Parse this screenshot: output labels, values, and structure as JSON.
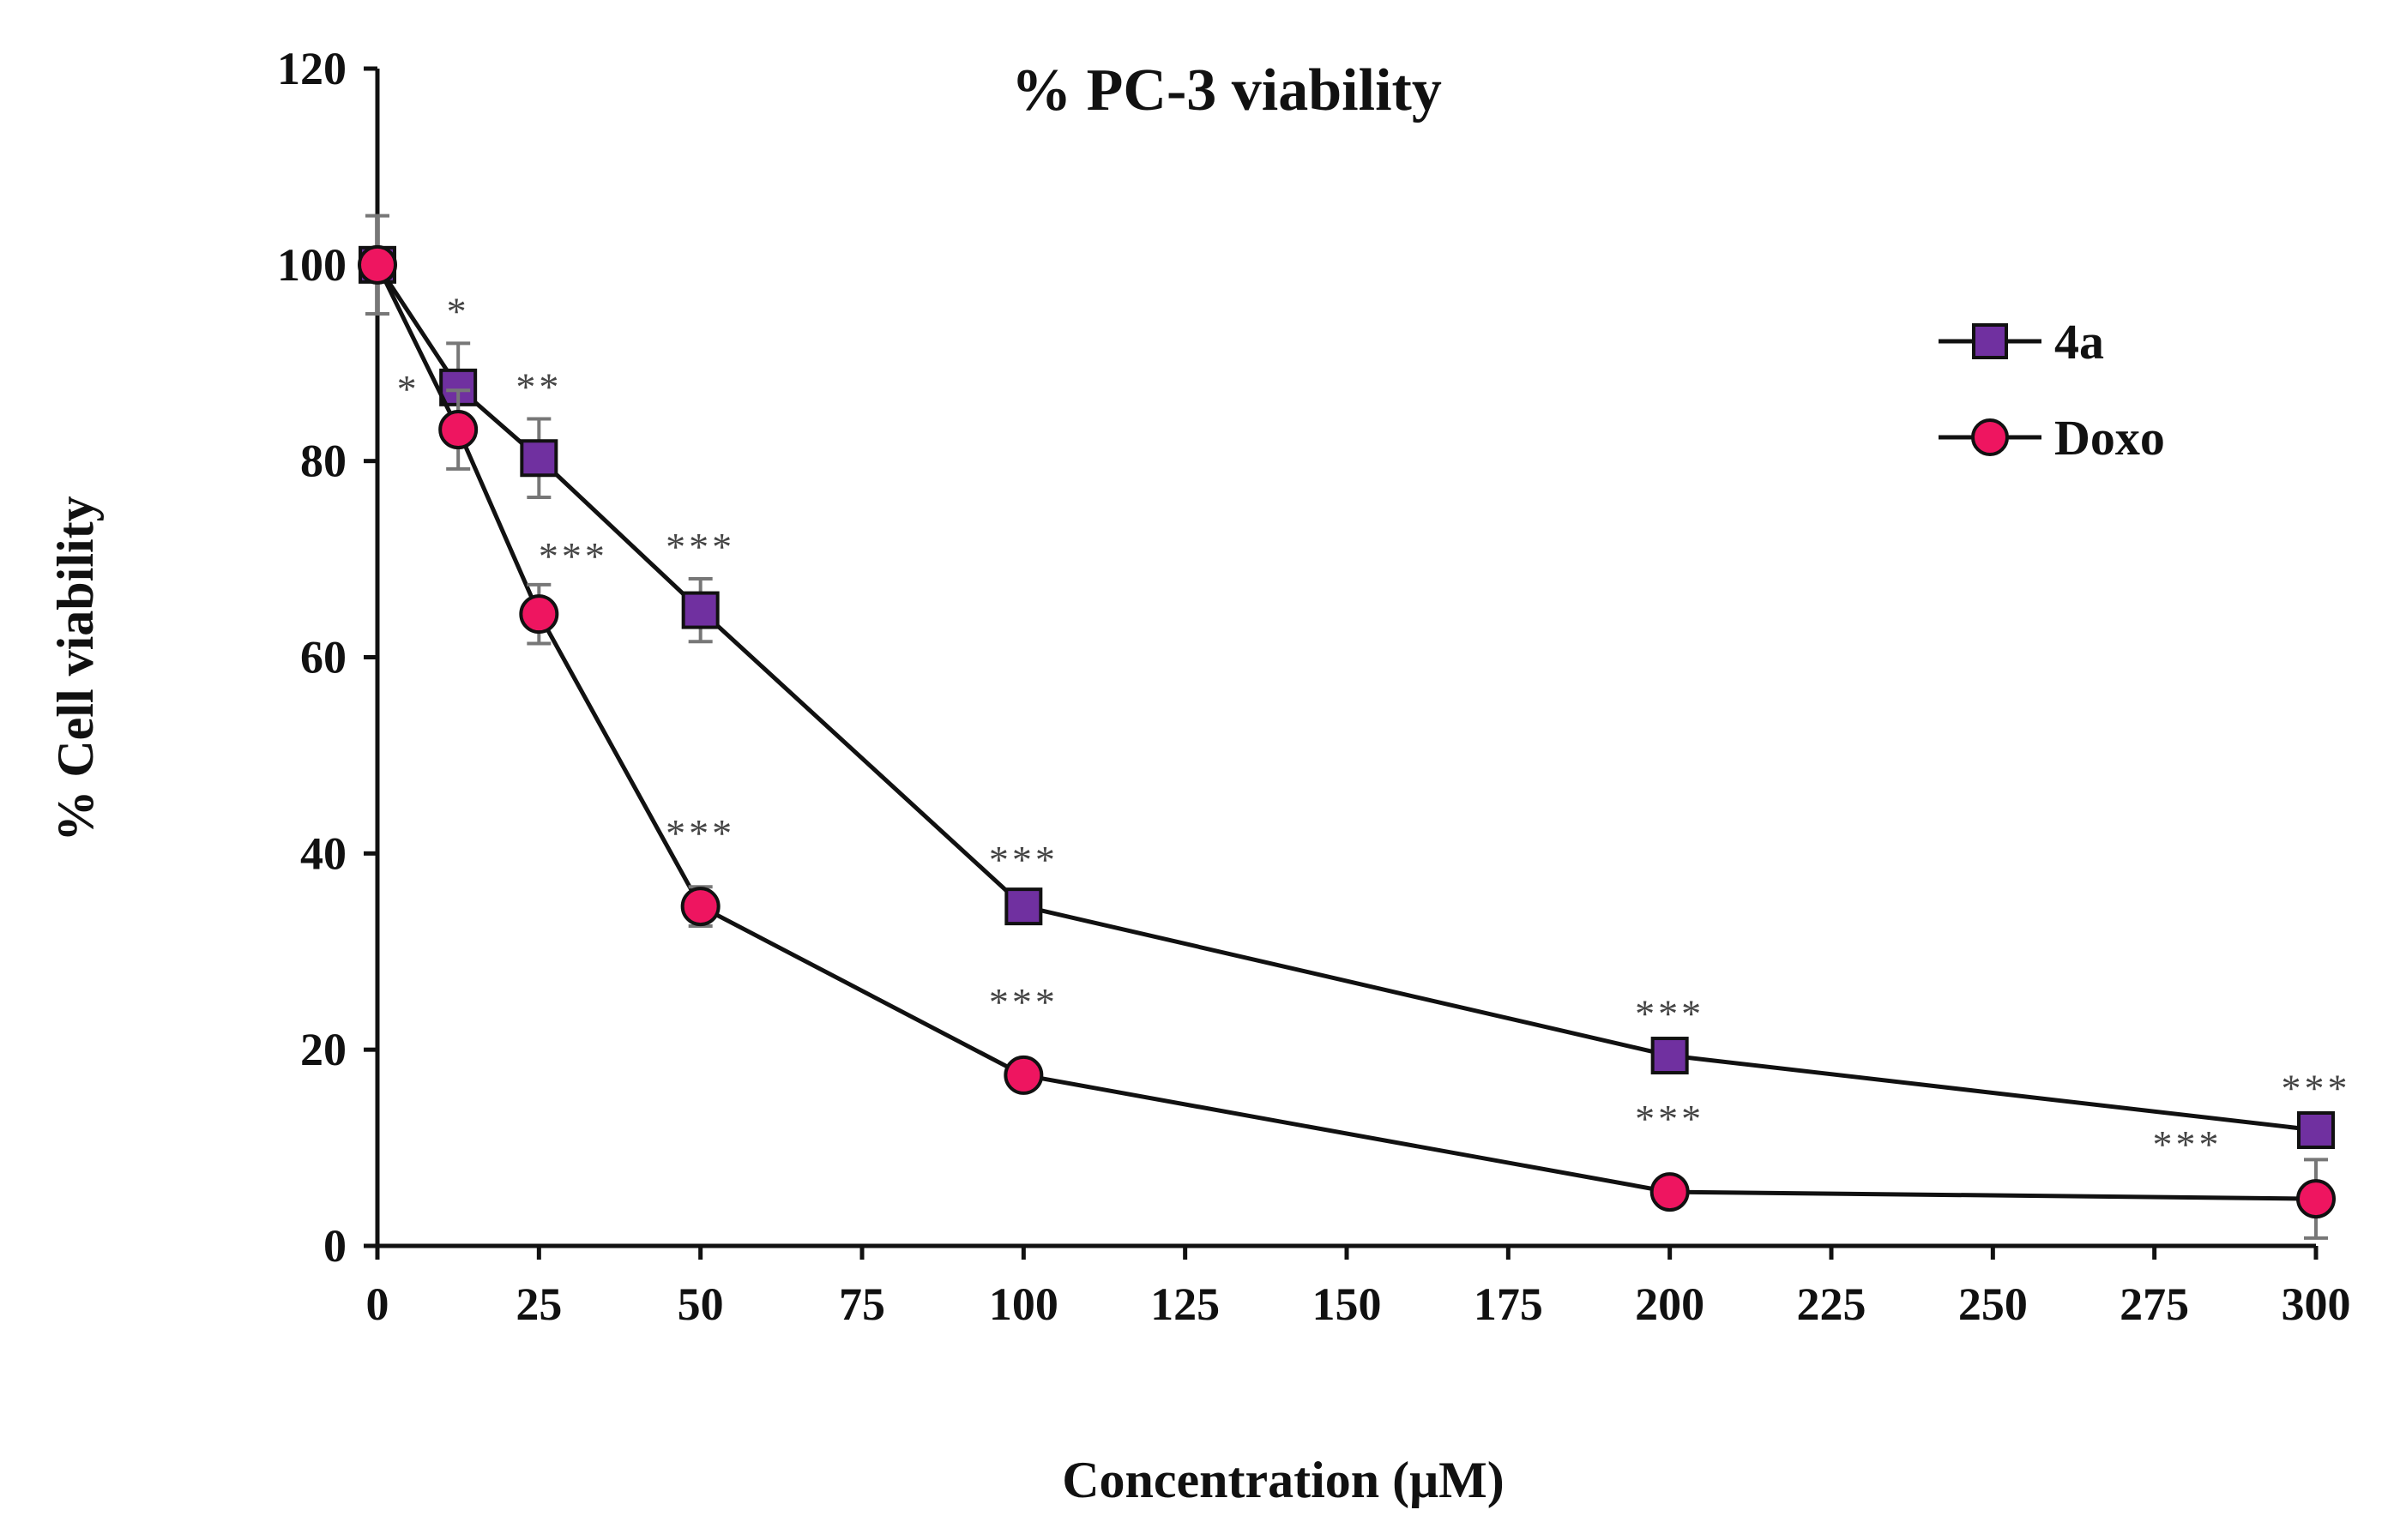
{
  "chart_data": {
    "type": "line",
    "title": "% PC-3 viability",
    "xlabel": "Concentration (μM)",
    "ylabel": "% Cell viability",
    "xlim": [
      0,
      300
    ],
    "ylim": [
      0,
      120
    ],
    "x_ticks": [
      "0",
      "25",
      "50",
      "75",
      "100",
      "125",
      "150",
      "175",
      "200",
      "225",
      "250",
      "275",
      "300"
    ],
    "y_ticks": [
      "0",
      "20",
      "40",
      "60",
      "80",
      "100",
      "120"
    ],
    "legend_position": "top-right",
    "series": [
      {
        "name": "4a",
        "marker": "square",
        "color": "#7030a0",
        "x": [
          0,
          12.5,
          25,
          50,
          100,
          200,
          300
        ],
        "y": [
          100,
          87.5,
          80.3,
          64.8,
          34.6,
          19.4,
          11.8
        ],
        "err": [
          5,
          4.5,
          4,
          3.2,
          1.5,
          1,
          1
        ],
        "sig": [
          "",
          "*",
          "**",
          "***",
          "***",
          "***",
          "***"
        ]
      },
      {
        "name": "Doxo",
        "marker": "circle",
        "color": "#ee1560",
        "x": [
          0,
          12.5,
          25,
          50,
          100,
          200,
          300
        ],
        "y": [
          100,
          83.2,
          64.4,
          34.6,
          17.4,
          5.5,
          4.8
        ],
        "err": [
          0,
          4,
          3,
          2,
          0.8,
          0.5,
          4
        ],
        "sig": [
          "",
          "*",
          "***",
          "***",
          "***",
          "***",
          "***"
        ]
      }
    ]
  }
}
